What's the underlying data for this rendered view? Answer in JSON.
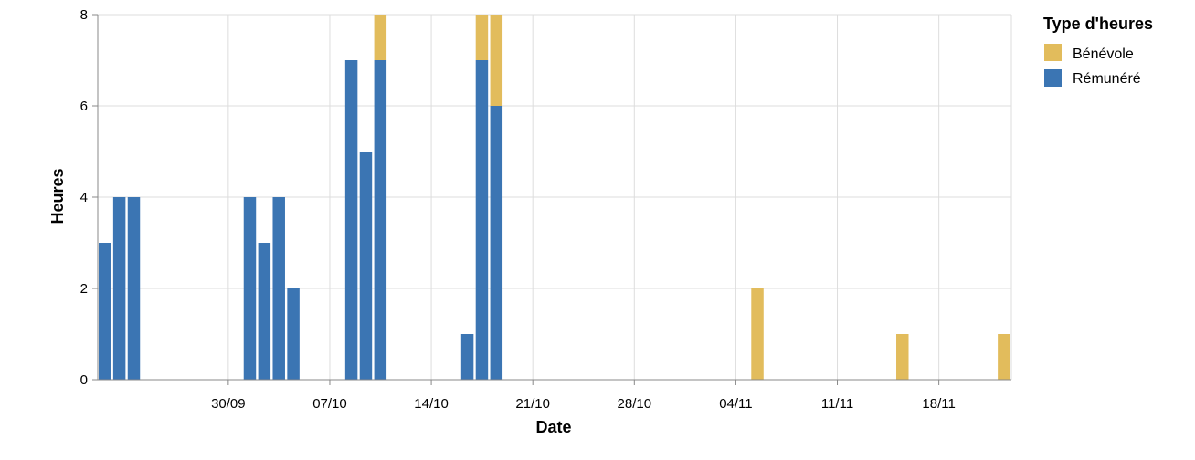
{
  "chart_data": {
    "type": "bar",
    "stacked": true,
    "xlabel": "Date",
    "ylabel": "Heures",
    "ylim": [
      0,
      8
    ],
    "yticks": [
      "0",
      "2",
      "4",
      "6",
      "8"
    ],
    "x_domain": [
      "2024-09-21",
      "2024-11-23"
    ],
    "xticks": [
      {
        "date": "2024-09-30",
        "label": "30/09"
      },
      {
        "date": "2024-10-07",
        "label": "07/10"
      },
      {
        "date": "2024-10-14",
        "label": "14/10"
      },
      {
        "date": "2024-10-21",
        "label": "21/10"
      },
      {
        "date": "2024-10-28",
        "label": "28/10"
      },
      {
        "date": "2024-11-04",
        "label": "04/11"
      },
      {
        "date": "2024-11-11",
        "label": "11/11"
      },
      {
        "date": "2024-11-18",
        "label": "18/11"
      }
    ],
    "grid": true,
    "legend": {
      "title": "Type d'heures",
      "position": "top-right",
      "entries": [
        {
          "name": "Bénévole",
          "color": "#e2bc5c"
        },
        {
          "name": "Rémunéré",
          "color": "#3b75b3"
        }
      ]
    },
    "series": [
      {
        "name": "Rémunéré",
        "color": "#3b75b3",
        "points": [
          {
            "date": "2024-09-21",
            "value": 3
          },
          {
            "date": "2024-09-22",
            "value": 4
          },
          {
            "date": "2024-09-23",
            "value": 4
          },
          {
            "date": "2024-10-01",
            "value": 4
          },
          {
            "date": "2024-10-02",
            "value": 3
          },
          {
            "date": "2024-10-03",
            "value": 4
          },
          {
            "date": "2024-10-04",
            "value": 2
          },
          {
            "date": "2024-10-08",
            "value": 7
          },
          {
            "date": "2024-10-09",
            "value": 5
          },
          {
            "date": "2024-10-10",
            "value": 7
          },
          {
            "date": "2024-10-16",
            "value": 1
          },
          {
            "date": "2024-10-17",
            "value": 7
          },
          {
            "date": "2024-10-18",
            "value": 6
          }
        ]
      },
      {
        "name": "Bénévole",
        "color": "#e2bc5c",
        "points": [
          {
            "date": "2024-10-10",
            "value": 1
          },
          {
            "date": "2024-10-17",
            "value": 1
          },
          {
            "date": "2024-10-18",
            "value": 2
          },
          {
            "date": "2024-11-05",
            "value": 2
          },
          {
            "date": "2024-11-15",
            "value": 1
          },
          {
            "date": "2024-11-22",
            "value": 1
          }
        ]
      }
    ]
  }
}
